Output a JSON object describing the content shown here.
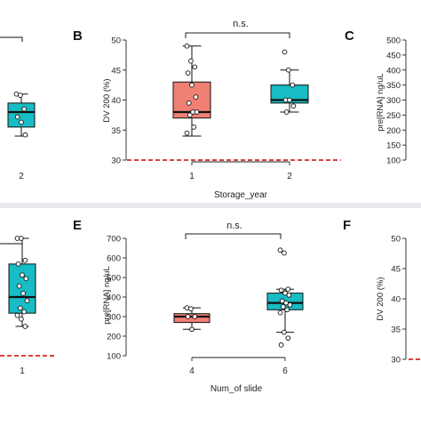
{
  "colors": {
    "pink": "#f07f74",
    "teal": "#17bcc4",
    "reference": "#cc0000",
    "axis": "#222222",
    "background": "#ffffff"
  },
  "panel_labels": {
    "b": "B",
    "c": "C",
    "e": "E",
    "f": "F"
  },
  "chart_data": [
    {
      "id": "A-partial",
      "type": "boxplot",
      "categories": [
        "2"
      ],
      "boxes": [
        {
          "category": "2",
          "color": "teal",
          "q1": 35.5,
          "median": 38,
          "q3": 39.5,
          "whisker_low": 34,
          "whisker_high": 41
        }
      ],
      "points": [
        {
          "category": "2",
          "values": [
            41,
            40.8,
            38.5,
            37.2,
            36.3,
            34.2
          ]
        }
      ],
      "ylim": [
        30,
        50
      ]
    },
    {
      "id": "B",
      "type": "boxplot",
      "title": "",
      "xlabel": "Storage_year",
      "ylabel": "DV 200 (%)",
      "categories": [
        "1",
        "2"
      ],
      "yticks": [
        "30",
        "35",
        "40",
        "45",
        "50"
      ],
      "ylim": [
        30,
        50
      ],
      "reference_line": 30,
      "significance": "n.s.",
      "boxes": [
        {
          "category": "1",
          "color": "pink",
          "q1": 37,
          "median": 38,
          "q3": 43,
          "whisker_low": 34,
          "whisker_high": 49
        },
        {
          "category": "2",
          "color": "teal",
          "q1": 39.5,
          "median": 40,
          "q3": 42.5,
          "whisker_low": 38,
          "whisker_high": 45
        }
      ],
      "points": [
        {
          "category": "1",
          "values": [
            49,
            46.5,
            45.5,
            44.5,
            42.5,
            40.5,
            39.5,
            38,
            38,
            37.5,
            35.5,
            34.5
          ]
        },
        {
          "category": "2",
          "values": [
            48,
            45,
            42.5,
            40,
            40,
            39,
            38
          ]
        }
      ]
    },
    {
      "id": "C-partial",
      "type": "boxplot",
      "ylabel": "pre[RNA] ng/uL",
      "yticks": [
        "100",
        "150",
        "200",
        "250",
        "300",
        "350",
        "400",
        "450",
        "500"
      ],
      "ylim": [
        100,
        500
      ]
    },
    {
      "id": "D-partial",
      "type": "boxplot",
      "categories": [
        "1"
      ],
      "reference_line": 30,
      "boxes": [
        {
          "category": "1",
          "color": "teal",
          "q1": 35.8,
          "median": 38,
          "q3": 42.5,
          "whisker_low": 34,
          "whisker_high": 46
        }
      ],
      "points": [
        {
          "category": "1",
          "values": [
            46,
            46,
            43,
            42.5,
            41,
            40.5,
            39.5,
            38.5,
            37.5,
            36.5,
            36,
            35.5,
            35,
            34
          ]
        }
      ],
      "ylim": [
        30,
        50
      ]
    },
    {
      "id": "E",
      "type": "boxplot",
      "title": "",
      "xlabel": "Num_of slide",
      "ylabel": "pre[RNA] ng/uL",
      "categories": [
        "4",
        "6"
      ],
      "yticks": [
        "100",
        "200",
        "300",
        "400",
        "500",
        "600",
        "700"
      ],
      "ylim": [
        100,
        700
      ],
      "significance": "n.s.",
      "boxes": [
        {
          "category": "4",
          "color": "pink",
          "q1": 270,
          "median": 300,
          "q3": 315,
          "whisker_low": 235,
          "whisker_high": 345
        },
        {
          "category": "6",
          "color": "teal",
          "q1": 335,
          "median": 370,
          "q3": 420,
          "whisker_low": 220,
          "whisker_high": 440
        }
      ],
      "points": [
        {
          "category": "4",
          "values": [
            345,
            340,
            300,
            300,
            235
          ]
        },
        {
          "category": "6",
          "values": [
            640,
            625,
            440,
            435,
            420,
            410,
            380,
            370,
            360,
            350,
            335,
            320,
            220,
            190,
            155
          ]
        }
      ]
    },
    {
      "id": "F-partial",
      "type": "boxplot",
      "ylabel": "DV 200 (%)",
      "yticks": [
        "30",
        "35",
        "40",
        "45",
        "50"
      ],
      "ylim": [
        30,
        50
      ],
      "reference_line": 30
    }
  ]
}
